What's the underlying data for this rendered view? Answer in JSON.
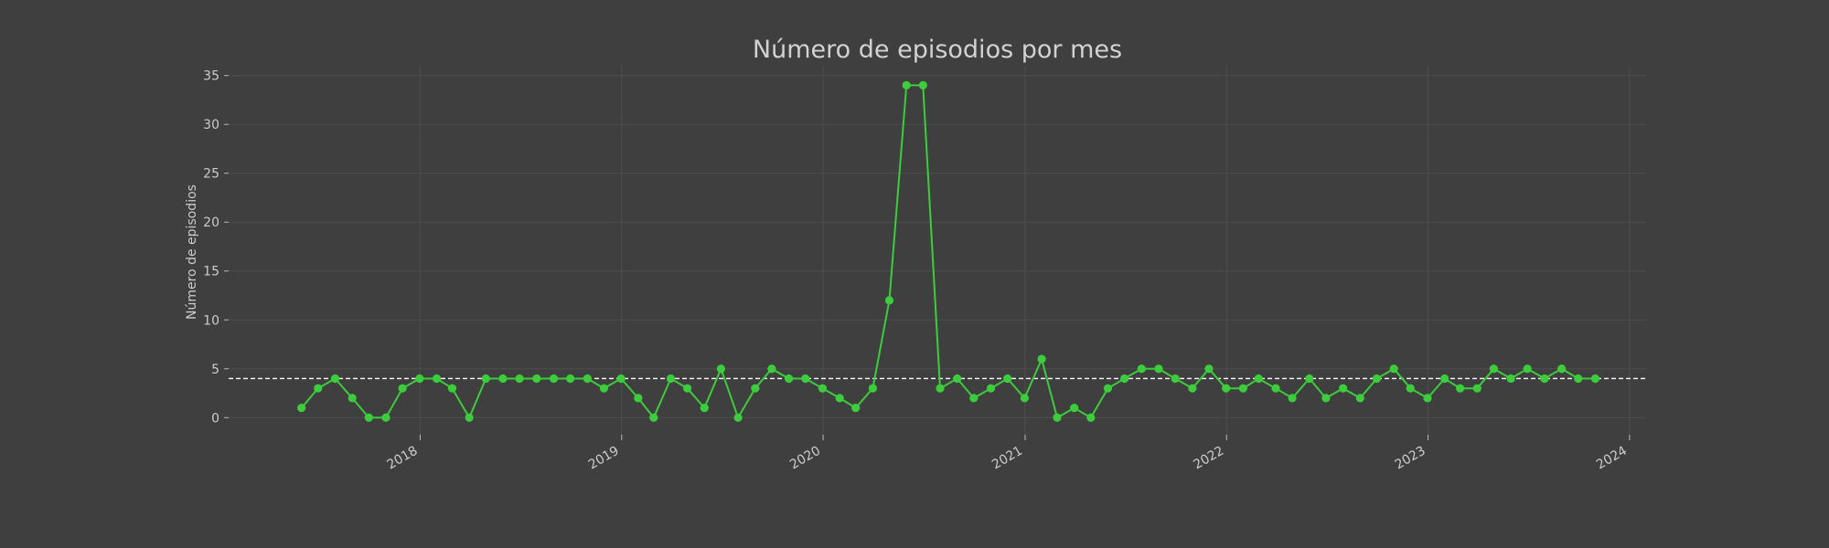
{
  "chart_data": {
    "type": "line",
    "title": "Número de episodios por mes",
    "xlabel": "",
    "ylabel": "Número de episodios",
    "ylim": [
      -1.75,
      36
    ],
    "xlim": [
      "2017-01-19",
      "2024-01-31"
    ],
    "x_ticks": [
      "2018-01-01",
      "2019-01-01",
      "2020-01-01",
      "2021-01-01",
      "2022-01-01",
      "2023-01-01",
      "2024-01-01"
    ],
    "x_tick_labels": [
      "2018",
      "2019",
      "2020",
      "2021",
      "2022",
      "2023",
      "2024"
    ],
    "y_ticks": [
      0,
      5,
      10,
      15,
      20,
      25,
      30,
      35
    ],
    "grid": true,
    "mean_line": 4,
    "series": [
      {
        "color": "#3ccc3c",
        "x": [
          "2017-05-31",
          "2017-06-30",
          "2017-07-31",
          "2017-08-31",
          "2017-09-30",
          "2017-10-31",
          "2017-11-30",
          "2017-12-31",
          "2018-01-31",
          "2018-02-28",
          "2018-03-31",
          "2018-04-30",
          "2018-05-31",
          "2018-06-30",
          "2018-07-31",
          "2018-08-31",
          "2018-09-30",
          "2018-10-31",
          "2018-11-30",
          "2018-12-31",
          "2019-01-31",
          "2019-02-28",
          "2019-03-31",
          "2019-04-30",
          "2019-05-31",
          "2019-06-30",
          "2019-07-31",
          "2019-08-31",
          "2019-09-30",
          "2019-10-31",
          "2019-11-30",
          "2019-12-31",
          "2020-01-31",
          "2020-02-29",
          "2020-03-31",
          "2020-04-30",
          "2020-05-31",
          "2020-06-30",
          "2020-07-31",
          "2020-08-31",
          "2020-09-30",
          "2020-10-31",
          "2020-11-30",
          "2020-12-31",
          "2021-01-31",
          "2021-02-28",
          "2021-03-31",
          "2021-04-30",
          "2021-05-31",
          "2021-06-30",
          "2021-07-31",
          "2021-08-31",
          "2021-09-30",
          "2021-10-31",
          "2021-11-30",
          "2021-12-31",
          "2022-01-31",
          "2022-02-28",
          "2022-03-31",
          "2022-04-30",
          "2022-05-31",
          "2022-06-30",
          "2022-07-31",
          "2022-08-31",
          "2022-09-30",
          "2022-10-31",
          "2022-11-30",
          "2022-12-31",
          "2023-01-31",
          "2023-02-28",
          "2023-03-31",
          "2023-04-30",
          "2023-05-31",
          "2023-06-30",
          "2023-07-31",
          "2023-08-31",
          "2023-09-30",
          "2023-10-31"
        ],
        "values": [
          1,
          3,
          4,
          2,
          0,
          0,
          3,
          4,
          4,
          3,
          0,
          4,
          4,
          4,
          4,
          4,
          4,
          4,
          3,
          4,
          2,
          0,
          4,
          3,
          1,
          5,
          0,
          3,
          5,
          4,
          4,
          3,
          2,
          1,
          3,
          12,
          34,
          34,
          3,
          4,
          2,
          3,
          4,
          2,
          6,
          0,
          1,
          0,
          3,
          4,
          5,
          5,
          4,
          3,
          5,
          3,
          3,
          4,
          3,
          2,
          4,
          2,
          3,
          2,
          4,
          5,
          3,
          2,
          4,
          3,
          3,
          5,
          4,
          5,
          4,
          5,
          4,
          4
        ]
      }
    ]
  }
}
